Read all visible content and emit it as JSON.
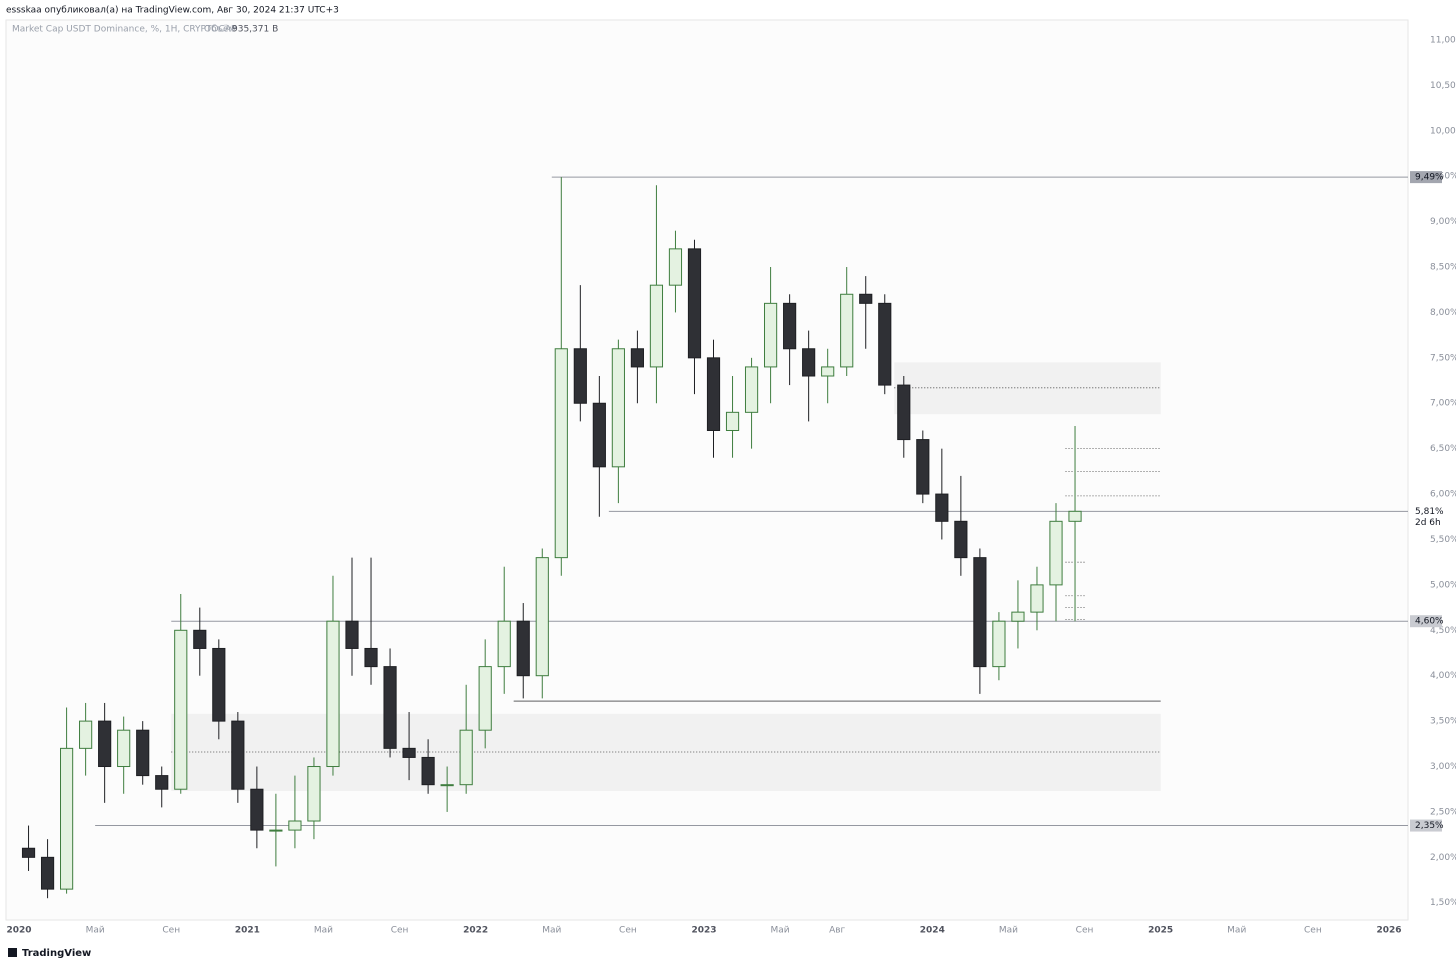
{
  "header": {
    "text": "essskaa опубликовал(а) на TradingView.com, Авг 30, 2024 21:37 UTC+3"
  },
  "footer": {
    "brand": "TradingView"
  },
  "chart_data": {
    "type": "candlestick",
    "title": "Market Cap USDT Dominance, %, 1H, CRYPTOCAP",
    "volume_label": "Объём",
    "volume_value": "935,371 B",
    "x": [
      "2020-01",
      "2020-02",
      "2020-03",
      "2020-04",
      "2020-05",
      "2020-06",
      "2020-07",
      "2020-08",
      "2020-09",
      "2020-10",
      "2020-11",
      "2020-12",
      "2021-01",
      "2021-02",
      "2021-03",
      "2021-04",
      "2021-05",
      "2021-06",
      "2021-07",
      "2021-08",
      "2021-09",
      "2021-10",
      "2021-11",
      "2021-12",
      "2022-01",
      "2022-02",
      "2022-03",
      "2022-04",
      "2022-05",
      "2022-06",
      "2022-07",
      "2022-08",
      "2022-09",
      "2022-10",
      "2022-11",
      "2022-12",
      "2023-01",
      "2023-02",
      "2023-03",
      "2023-04",
      "2023-05",
      "2023-06",
      "2023-07",
      "2023-08",
      "2023-09",
      "2023-10",
      "2023-11",
      "2023-12",
      "2024-01",
      "2024-02",
      "2024-03",
      "2024-04",
      "2024-05",
      "2024-06",
      "2024-07",
      "2024-08"
    ],
    "open": [
      2.1,
      2.0,
      1.65,
      3.2,
      3.5,
      3.0,
      3.4,
      2.9,
      2.75,
      4.5,
      4.3,
      3.5,
      2.75,
      2.3,
      2.3,
      2.4,
      3.0,
      4.6,
      4.3,
      4.1,
      3.2,
      3.1,
      2.8,
      2.8,
      3.4,
      4.1,
      4.6,
      4.0,
      5.3,
      7.6,
      7.0,
      6.3,
      7.6,
      7.4,
      8.3,
      8.7,
      7.5,
      6.7,
      6.9,
      7.4,
      8.1,
      7.6,
      7.3,
      7.4,
      8.2,
      8.1,
      7.2,
      6.6,
      6.0,
      5.7,
      5.3,
      4.1,
      4.6,
      4.7,
      5.0,
      5.7
    ],
    "high": [
      2.35,
      2.2,
      3.65,
      3.7,
      3.7,
      3.55,
      3.5,
      3.0,
      4.9,
      4.75,
      4.4,
      3.6,
      3.0,
      2.7,
      2.9,
      3.1,
      5.1,
      5.3,
      5.3,
      4.3,
      3.6,
      3.3,
      3.0,
      3.9,
      4.4,
      5.2,
      4.8,
      5.4,
      9.49,
      8.3,
      7.3,
      7.7,
      7.8,
      9.4,
      8.9,
      8.8,
      7.7,
      7.3,
      7.5,
      8.5,
      8.2,
      7.8,
      7.6,
      8.5,
      8.4,
      8.2,
      7.3,
      6.7,
      6.5,
      6.2,
      5.4,
      4.7,
      5.05,
      5.2,
      5.9,
      6.75
    ],
    "low": [
      1.85,
      1.55,
      1.6,
      2.9,
      2.6,
      2.7,
      2.8,
      2.55,
      2.7,
      4.0,
      3.3,
      2.6,
      2.1,
      1.9,
      2.1,
      2.2,
      2.9,
      4.0,
      3.9,
      3.1,
      2.85,
      2.7,
      2.5,
      2.7,
      3.2,
      3.8,
      3.75,
      3.75,
      5.1,
      6.8,
      5.75,
      5.9,
      7.0,
      7.0,
      8.0,
      7.1,
      6.4,
      6.4,
      6.5,
      7.0,
      7.2,
      6.8,
      7.0,
      7.3,
      7.6,
      7.1,
      6.4,
      5.9,
      5.5,
      5.1,
      3.8,
      3.95,
      4.3,
      4.5,
      4.6,
      4.6
    ],
    "close": [
      2.0,
      1.65,
      3.2,
      3.5,
      3.0,
      3.4,
      2.9,
      2.75,
      4.5,
      4.3,
      3.5,
      2.75,
      2.3,
      2.3,
      2.4,
      3.0,
      4.6,
      4.3,
      4.1,
      3.2,
      3.1,
      2.8,
      2.8,
      3.4,
      4.1,
      4.6,
      4.0,
      5.3,
      7.6,
      7.0,
      6.3,
      7.6,
      7.4,
      8.3,
      8.7,
      7.5,
      6.7,
      6.9,
      7.4,
      8.1,
      7.6,
      7.3,
      7.4,
      8.2,
      8.1,
      7.2,
      6.6,
      6.0,
      5.7,
      5.3,
      4.1,
      4.6,
      4.7,
      5.0,
      5.7,
      5.81
    ],
    "up_color": "#e4f2e1",
    "up_border": "#3f7d3f",
    "down_color": "#2f3035",
    "down_border": "#1e1f23",
    "ylim": [
      1.31,
      11.22
    ],
    "yticks": [
      {
        "value": 1.5,
        "label": "1,50%"
      },
      {
        "value": 2,
        "label": "2,00%"
      },
      {
        "value": 2.5,
        "label": "2,50%"
      },
      {
        "value": 3,
        "label": "3,00%"
      },
      {
        "value": 3.5,
        "label": "3,50%"
      },
      {
        "value": 4,
        "label": "4,00%"
      },
      {
        "value": 4.5,
        "label": "4,50%"
      },
      {
        "value": 5,
        "label": "5,00%"
      },
      {
        "value": 5.5,
        "label": "5,50%"
      },
      {
        "value": 6,
        "label": "6,00%"
      },
      {
        "value": 6.5,
        "label": "6,50%"
      },
      {
        "value": 7,
        "label": "7,00%"
      },
      {
        "value": 7.5,
        "label": "7,50%"
      },
      {
        "value": 8,
        "label": "8,00%"
      },
      {
        "value": 8.5,
        "label": "8,50%"
      },
      {
        "value": 9,
        "label": "9,00%"
      },
      {
        "value": 9.5,
        "label": "9,50%"
      },
      {
        "value": 10,
        "label": "10,00%"
      },
      {
        "value": 10.5,
        "label": "10,50%"
      },
      {
        "value": 11,
        "label": "11,00%"
      }
    ],
    "xlim": [
      "2019-12",
      "2026-02"
    ],
    "xticks": [
      {
        "value": "2020-01",
        "label": "2020"
      },
      {
        "value": "2020-05",
        "label": "Май"
      },
      {
        "value": "2020-09",
        "label": "Сен"
      },
      {
        "value": "2021-01",
        "label": "2021"
      },
      {
        "value": "2021-05",
        "label": "Май"
      },
      {
        "value": "2021-09",
        "label": "Сен"
      },
      {
        "value": "2022-01",
        "label": "2022"
      },
      {
        "value": "2022-05",
        "label": "Май"
      },
      {
        "value": "2022-09",
        "label": "Сен"
      },
      {
        "value": "2023-01",
        "label": "2023"
      },
      {
        "value": "2023-05",
        "label": "Май"
      },
      {
        "value": "2023-08",
        "label": "Авг"
      },
      {
        "value": "2024-01",
        "label": "2024"
      },
      {
        "value": "2024-05",
        "label": "Май"
      },
      {
        "value": "2024-09",
        "label": "Сен"
      },
      {
        "value": "2025-01",
        "label": "2025"
      },
      {
        "value": "2025-05",
        "label": "Май"
      },
      {
        "value": "2025-09",
        "label": "Сен"
      },
      {
        "value": "2026-01",
        "label": "2026"
      }
    ],
    "grid": false,
    "levels": [
      {
        "value": 9.49,
        "label": "9,49%",
        "start": "2022-05"
      },
      {
        "value": 5.81,
        "label": "5,81%",
        "start": "2022-08",
        "countdown": "2d 6h"
      },
      {
        "value": 4.6,
        "label": "4,60%",
        "start": "2020-09"
      },
      {
        "value": 2.35,
        "label": "2,35%",
        "start": "2020-05"
      },
      {
        "value": 3.72,
        "start": "2022-03",
        "end": "2025-01"
      }
    ],
    "zones": [
      {
        "low": 2.73,
        "high": 3.58,
        "mid": 3.16,
        "start": "2020-09",
        "end": "2025-01"
      },
      {
        "low": 6.88,
        "high": 7.45,
        "mid": 7.17,
        "start": "2023-11",
        "end": "2025-01"
      }
    ],
    "dotted_levels": [
      {
        "value": 6.5,
        "start": "2024-08",
        "end": "2025-01"
      },
      {
        "value": 6.25,
        "start": "2024-08",
        "end": "2025-01"
      },
      {
        "value": 5.98,
        "start": "2024-08",
        "end": "2025-01"
      },
      {
        "value": 5.25,
        "start": "2024-08",
        "end": "2024-09"
      },
      {
        "value": 4.88,
        "start": "2024-08",
        "end": "2024-09"
      },
      {
        "value": 4.75,
        "start": "2024-08",
        "end": "2024-09"
      },
      {
        "value": 4.62,
        "start": "2024-08",
        "end": "2024-09"
      }
    ]
  }
}
